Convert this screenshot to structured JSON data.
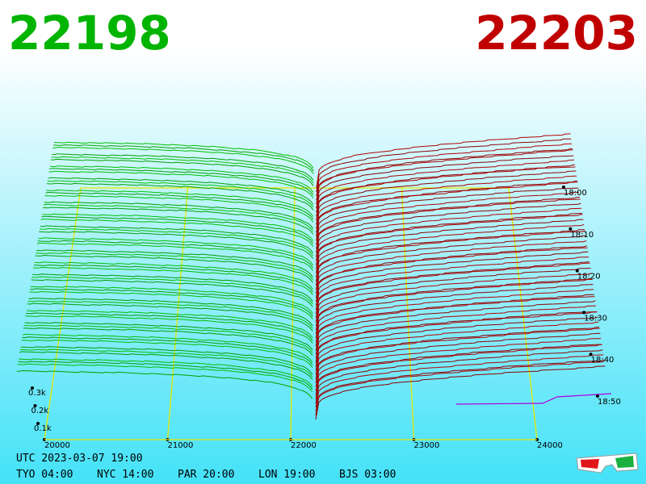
{
  "header": {
    "bid": 22198,
    "ask": 22203
  },
  "price_axis": [
    20000,
    21000,
    22000,
    23000,
    24000
  ],
  "volume_axis": [
    {
      "value": 100,
      "label": "0.1k"
    },
    {
      "value": 200,
      "label": "0.2k"
    },
    {
      "value": 300,
      "label": "0.3k"
    }
  ],
  "time_axis": [
    "18:00",
    "18:10",
    "18:20",
    "18:30",
    "18:40",
    "18:50"
  ],
  "footer": {
    "utc": "UTC 2023-03-07 19:00",
    "zones": [
      "TYO 04:00",
      "NYC 14:00",
      "PAR 20:00",
      "LON 19:00",
      "BJS 03:00"
    ]
  }
}
